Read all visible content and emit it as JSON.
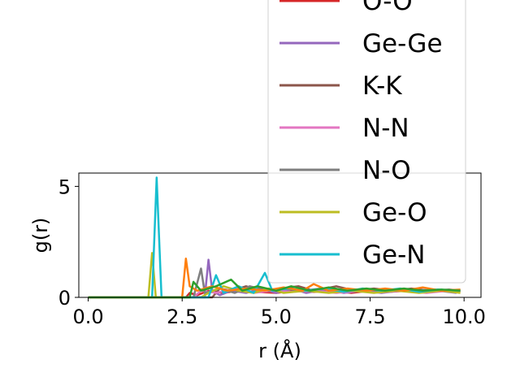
{
  "chart_data": {
    "type": "line",
    "xlabel": "r (Å)",
    "ylabel": "g(r)",
    "xlim": [
      -0.25,
      10.45
    ],
    "ylim": [
      0,
      5.6
    ],
    "xticks": [
      0.0,
      2.5,
      5.0,
      7.5,
      10.0
    ],
    "xtick_labels": [
      "0.0",
      "2.5",
      "5.0",
      "7.5",
      "10.0"
    ],
    "yticks": [
      0,
      5
    ],
    "ytick_labels": [
      "0",
      "5"
    ],
    "grid": false,
    "legend_placement": "upper-right, extending above the axes",
    "series": [
      {
        "name": "O-O",
        "color": "#d62728",
        "points": [
          [
            0,
            0
          ],
          [
            2.5,
            0
          ],
          [
            2.6,
            0
          ],
          [
            2.7,
            0.2
          ],
          [
            2.9,
            0.1
          ],
          [
            3.2,
            0.3
          ],
          [
            3.6,
            0.2
          ],
          [
            4.0,
            0.3
          ],
          [
            4.5,
            0.25
          ],
          [
            5.0,
            0.2
          ],
          [
            5.5,
            0.3
          ],
          [
            6.0,
            0.25
          ],
          [
            6.5,
            0.3
          ],
          [
            7.0,
            0.2
          ],
          [
            7.5,
            0.3
          ],
          [
            8.0,
            0.25
          ],
          [
            8.5,
            0.3
          ],
          [
            9.0,
            0.25
          ],
          [
            9.5,
            0.3
          ],
          [
            9.9,
            0.25
          ]
        ]
      },
      {
        "name": "Ge-Ge",
        "color": "#9467bd",
        "points": [
          [
            0,
            0
          ],
          [
            3.1,
            0
          ],
          [
            3.2,
            1.7
          ],
          [
            3.3,
            0.3
          ],
          [
            3.5,
            0.1
          ],
          [
            3.8,
            0.3
          ],
          [
            4.2,
            0.2
          ],
          [
            4.6,
            0.4
          ],
          [
            5.0,
            0.2
          ],
          [
            5.4,
            0.4
          ],
          [
            5.8,
            0.2
          ],
          [
            6.3,
            0.35
          ],
          [
            6.8,
            0.2
          ],
          [
            7.3,
            0.3
          ],
          [
            7.8,
            0.2
          ],
          [
            8.3,
            0.3
          ],
          [
            8.8,
            0.25
          ],
          [
            9.3,
            0.3
          ],
          [
            9.8,
            0.2
          ]
        ]
      },
      {
        "name": "K-K",
        "color": "#8c564b",
        "points": [
          [
            0,
            0
          ],
          [
            3.3,
            0
          ],
          [
            3.5,
            0.4
          ],
          [
            3.8,
            0.3
          ],
          [
            4.2,
            0.5
          ],
          [
            4.6,
            0.3
          ],
          [
            5.1,
            0.4
          ],
          [
            5.6,
            0.5
          ],
          [
            6.0,
            0.3
          ],
          [
            6.6,
            0.5
          ],
          [
            7.1,
            0.3
          ],
          [
            7.6,
            0.4
          ],
          [
            8.1,
            0.3
          ],
          [
            8.6,
            0.4
          ],
          [
            9.1,
            0.3
          ],
          [
            9.6,
            0.35
          ],
          [
            9.9,
            0.3
          ]
        ]
      },
      {
        "name": "N-N",
        "color": "#e377c2",
        "points": [
          [
            0,
            0
          ],
          [
            2.8,
            0
          ],
          [
            3.0,
            0.3
          ],
          [
            3.4,
            0.2
          ],
          [
            3.9,
            0.4
          ],
          [
            4.4,
            0.2
          ],
          [
            4.9,
            0.3
          ],
          [
            5.4,
            0.25
          ],
          [
            6.0,
            0.3
          ],
          [
            6.6,
            0.2
          ],
          [
            7.2,
            0.3
          ],
          [
            7.8,
            0.25
          ],
          [
            8.4,
            0.3
          ],
          [
            9.0,
            0.2
          ],
          [
            9.6,
            0.3
          ],
          [
            9.9,
            0.25
          ]
        ]
      },
      {
        "name": "N-O",
        "color": "#7f7f7f",
        "points": [
          [
            0,
            0
          ],
          [
            2.8,
            0
          ],
          [
            3.0,
            1.3
          ],
          [
            3.1,
            0.2
          ],
          [
            3.5,
            0.4
          ],
          [
            3.9,
            0.2
          ],
          [
            4.3,
            0.5
          ],
          [
            4.8,
            0.3
          ],
          [
            5.2,
            0.4
          ],
          [
            5.7,
            0.3
          ],
          [
            6.2,
            0.4
          ],
          [
            6.7,
            0.3
          ],
          [
            7.2,
            0.35
          ],
          [
            7.7,
            0.3
          ],
          [
            8.2,
            0.35
          ],
          [
            8.7,
            0.3
          ],
          [
            9.2,
            0.35
          ],
          [
            9.7,
            0.3
          ]
        ]
      },
      {
        "name": "Ge-O",
        "color": "#bcbd22",
        "points": [
          [
            0,
            0
          ],
          [
            1.6,
            0
          ],
          [
            1.7,
            2.0
          ],
          [
            1.8,
            0
          ],
          [
            3.0,
            0
          ],
          [
            3.2,
            0.2
          ],
          [
            3.6,
            0.5
          ],
          [
            4.0,
            0.3
          ],
          [
            4.4,
            0.2
          ],
          [
            4.8,
            0.4
          ],
          [
            5.2,
            0.2
          ],
          [
            5.8,
            0.3
          ],
          [
            6.4,
            0.2
          ],
          [
            7.0,
            0.3
          ],
          [
            7.6,
            0.2
          ],
          [
            8.2,
            0.3
          ],
          [
            8.8,
            0.2
          ],
          [
            9.4,
            0.3
          ],
          [
            9.9,
            0.2
          ]
        ]
      },
      {
        "name": "Ge-N",
        "color": "#17becf",
        "points": [
          [
            0,
            0
          ],
          [
            1.7,
            0
          ],
          [
            1.82,
            5.4
          ],
          [
            1.95,
            0
          ],
          [
            3.2,
            0
          ],
          [
            3.4,
            1.0
          ],
          [
            3.6,
            0.2
          ],
          [
            4.0,
            0.5
          ],
          [
            4.4,
            0.2
          ],
          [
            4.7,
            1.1
          ],
          [
            4.9,
            0.3
          ],
          [
            5.3,
            0.4
          ],
          [
            5.8,
            0.3
          ],
          [
            6.3,
            0.4
          ],
          [
            6.8,
            0.25
          ],
          [
            7.3,
            0.4
          ],
          [
            7.8,
            0.3
          ],
          [
            8.3,
            0.4
          ],
          [
            8.8,
            0.25
          ],
          [
            9.3,
            0.35
          ],
          [
            9.9,
            0.3
          ]
        ]
      },
      {
        "name": "",
        "color": "#ff7f0e",
        "points": [
          [
            0,
            0
          ],
          [
            2.5,
            0
          ],
          [
            2.6,
            1.75
          ],
          [
            2.7,
            0.5
          ],
          [
            2.9,
            0.3
          ],
          [
            3.3,
            0.5
          ],
          [
            3.7,
            0.3
          ],
          [
            4.2,
            0.4
          ],
          [
            4.7,
            0.3
          ],
          [
            5.2,
            0.45
          ],
          [
            5.7,
            0.3
          ],
          [
            6.0,
            0.6
          ],
          [
            6.4,
            0.3
          ],
          [
            6.9,
            0.4
          ],
          [
            7.4,
            0.3
          ],
          [
            7.9,
            0.4
          ],
          [
            8.4,
            0.3
          ],
          [
            8.9,
            0.45
          ],
          [
            9.4,
            0.3
          ],
          [
            9.9,
            0.35
          ]
        ]
      },
      {
        "name": "",
        "color": "#2ca02c",
        "points": [
          [
            0,
            0
          ],
          [
            2.7,
            0
          ],
          [
            2.8,
            0.7
          ],
          [
            3.0,
            0.3
          ],
          [
            3.4,
            0.5
          ],
          [
            3.8,
            0.8
          ],
          [
            4.1,
            0.3
          ],
          [
            4.5,
            0.5
          ],
          [
            5.0,
            0.3
          ],
          [
            5.4,
            0.5
          ],
          [
            5.9,
            0.3
          ],
          [
            6.4,
            0.45
          ],
          [
            6.9,
            0.3
          ],
          [
            7.4,
            0.4
          ],
          [
            7.9,
            0.3
          ],
          [
            8.4,
            0.4
          ],
          [
            8.9,
            0.3
          ],
          [
            9.4,
            0.35
          ],
          [
            9.9,
            0.3
          ]
        ]
      }
    ]
  }
}
